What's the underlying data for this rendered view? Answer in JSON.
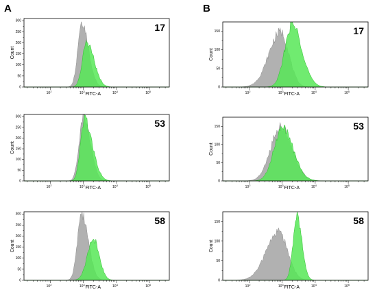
{
  "figure": {
    "panels": [
      {
        "letter": "A"
      },
      {
        "letter": "B"
      }
    ]
  },
  "colors": {
    "control": "#a9a9a9",
    "control_edge": "#8f8f8f",
    "sample": "#57e857",
    "sample_edge": "#2fbf2f"
  },
  "chart_data": [
    {
      "type": "area",
      "panel": "A",
      "label": "17",
      "xlabel": "FITC-A",
      "ylabel": "Count",
      "x_scale": "log",
      "xlim_decades": [
        1.2,
        5.6
      ],
      "ylim": [
        0,
        310
      ],
      "x_ticks": [
        {
          "label": "10",
          "exp": "2",
          "value": 2
        },
        {
          "label": "10",
          "exp": "3",
          "value": 3
        },
        {
          "label": "10",
          "exp": "4",
          "value": 4
        },
        {
          "label": "10",
          "exp": "5",
          "value": 5
        }
      ],
      "y_ticks": [
        0,
        50,
        100,
        150,
        200,
        250,
        300
      ],
      "series": [
        {
          "role": "control",
          "peak_log10": 2.95,
          "peak_count": 300,
          "sigma_left": 0.12,
          "sigma_right": 0.2
        },
        {
          "role": "sample",
          "peak_log10": 3.1,
          "peak_count": 205,
          "sigma_left": 0.13,
          "sigma_right": 0.22
        }
      ]
    },
    {
      "type": "area",
      "panel": "B",
      "label": "17",
      "xlabel": "FITC-A",
      "ylabel": "Count",
      "x_scale": "log",
      "xlim_decades": [
        1.2,
        5.6
      ],
      "ylim": [
        0,
        175
      ],
      "x_ticks": [
        {
          "label": "10",
          "exp": "2",
          "value": 2
        },
        {
          "label": "10",
          "exp": "3",
          "value": 3
        },
        {
          "label": "10",
          "exp": "4",
          "value": 4
        },
        {
          "label": "10",
          "exp": "5",
          "value": 5
        }
      ],
      "y_ticks": [
        0,
        50,
        100,
        150
      ],
      "series": [
        {
          "role": "control",
          "peak_log10": 2.95,
          "peak_count": 150,
          "sigma_left": 0.35,
          "sigma_right": 0.25
        },
        {
          "role": "sample",
          "peak_log10": 3.3,
          "peak_count": 170,
          "sigma_left": 0.22,
          "sigma_right": 0.3
        }
      ]
    },
    {
      "type": "area",
      "panel": "A",
      "label": "53",
      "xlabel": "FITC-A",
      "ylabel": "Count",
      "x_scale": "log",
      "xlim_decades": [
        1.2,
        5.6
      ],
      "ylim": [
        0,
        310
      ],
      "x_ticks": [
        {
          "label": "10",
          "exp": "2",
          "value": 2
        },
        {
          "label": "10",
          "exp": "3",
          "value": 3
        },
        {
          "label": "10",
          "exp": "4",
          "value": 4
        },
        {
          "label": "10",
          "exp": "5",
          "value": 5
        }
      ],
      "y_ticks": [
        0,
        50,
        100,
        150,
        200,
        250,
        300
      ],
      "series": [
        {
          "role": "control",
          "peak_log10": 3.0,
          "peak_count": 300,
          "sigma_left": 0.13,
          "sigma_right": 0.21
        },
        {
          "role": "sample",
          "peak_log10": 3.03,
          "peak_count": 290,
          "sigma_left": 0.12,
          "sigma_right": 0.24
        }
      ]
    },
    {
      "type": "area",
      "panel": "B",
      "label": "53",
      "xlabel": "FITC-A",
      "ylabel": "Count",
      "x_scale": "log",
      "xlim_decades": [
        1.2,
        5.6
      ],
      "ylim": [
        0,
        175
      ],
      "x_ticks": [
        {
          "label": "10",
          "exp": "2",
          "value": 2
        },
        {
          "label": "10",
          "exp": "3",
          "value": 3
        },
        {
          "label": "10",
          "exp": "4",
          "value": 4
        },
        {
          "label": "10",
          "exp": "5",
          "value": 5
        }
      ],
      "y_ticks": [
        0,
        50,
        100,
        150
      ],
      "series": [
        {
          "role": "control",
          "peak_log10": 2.95,
          "peak_count": 150,
          "sigma_left": 0.3,
          "sigma_right": 0.35
        },
        {
          "role": "sample",
          "peak_log10": 3.0,
          "peak_count": 148,
          "sigma_left": 0.25,
          "sigma_right": 0.33
        }
      ]
    },
    {
      "type": "area",
      "panel": "A",
      "label": "58",
      "xlabel": "FITC-A",
      "ylabel": "Count",
      "x_scale": "log",
      "xlim_decades": [
        1.2,
        5.6
      ],
      "ylim": [
        0,
        310
      ],
      "x_ticks": [
        {
          "label": "10",
          "exp": "2",
          "value": 2
        },
        {
          "label": "10",
          "exp": "3",
          "value": 3
        },
        {
          "label": "10",
          "exp": "4",
          "value": 4
        },
        {
          "label": "10",
          "exp": "5",
          "value": 5
        }
      ],
      "y_ticks": [
        0,
        50,
        100,
        150,
        200,
        250,
        300
      ],
      "series": [
        {
          "role": "control",
          "peak_log10": 2.95,
          "peak_count": 300,
          "sigma_left": 0.13,
          "sigma_right": 0.2
        },
        {
          "role": "sample",
          "peak_log10": 3.3,
          "peak_count": 190,
          "sigma_left": 0.18,
          "sigma_right": 0.18
        }
      ]
    },
    {
      "type": "area",
      "panel": "B",
      "label": "58",
      "xlabel": "FITC-A",
      "ylabel": "Count",
      "x_scale": "log",
      "xlim_decades": [
        1.2,
        5.6
      ],
      "ylim": [
        0,
        175
      ],
      "x_ticks": [
        {
          "label": "10",
          "exp": "2",
          "value": 2
        },
        {
          "label": "10",
          "exp": "3",
          "value": 3
        },
        {
          "label": "10",
          "exp": "4",
          "value": 4
        },
        {
          "label": "10",
          "exp": "5",
          "value": 5
        }
      ],
      "y_ticks": [
        0,
        50,
        100,
        150
      ],
      "series": [
        {
          "role": "control",
          "peak_log10": 2.9,
          "peak_count": 125,
          "sigma_left": 0.38,
          "sigma_right": 0.27
        },
        {
          "role": "sample",
          "peak_log10": 3.45,
          "peak_count": 165,
          "sigma_left": 0.12,
          "sigma_right": 0.15
        }
      ]
    }
  ]
}
